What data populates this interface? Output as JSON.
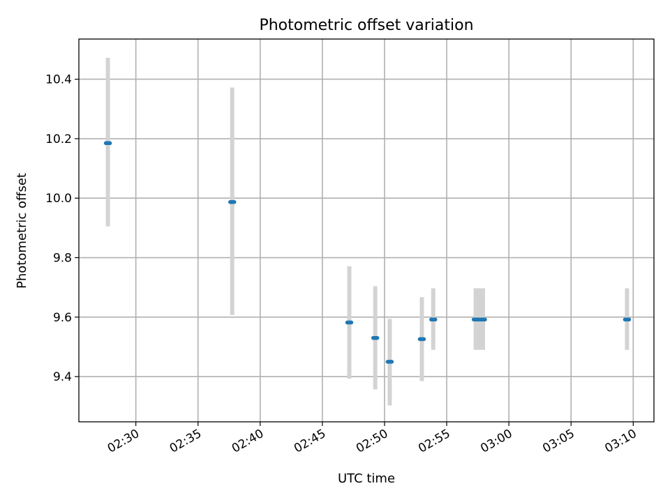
{
  "chart_data": {
    "type": "scatter",
    "title": "Photometric offset variation",
    "xlabel": "UTC time",
    "ylabel": "Photometric offset",
    "xlim": [
      "02:25:25",
      "03:11:40"
    ],
    "ylim": [
      9.248,
      10.535
    ],
    "x_ticks": [
      "02:30",
      "02:35",
      "02:40",
      "02:45",
      "02:50",
      "02:55",
      "03:00",
      "03:05",
      "03:10"
    ],
    "y_ticks": [
      "9.4",
      "9.6",
      "9.8",
      "10.0",
      "10.2",
      "10.4"
    ],
    "grid": true,
    "series": [
      {
        "marker_color": "#1f77b4",
        "band_color": "#d3d3d3",
        "points": [
          {
            "t_start": "02:27:35",
            "t_end": "02:27:55",
            "value": 10.185,
            "lower": 9.905,
            "upper": 10.472
          },
          {
            "t_start": "02:37:35",
            "t_end": "02:37:55",
            "value": 9.987,
            "lower": 9.607,
            "upper": 10.372
          },
          {
            "t_start": "02:47:00",
            "t_end": "02:47:20",
            "value": 9.582,
            "lower": 9.393,
            "upper": 9.771
          },
          {
            "t_start": "02:49:05",
            "t_end": "02:49:25",
            "value": 9.53,
            "lower": 9.357,
            "upper": 9.704
          },
          {
            "t_start": "02:50:15",
            "t_end": "02:50:35",
            "value": 9.45,
            "lower": 9.303,
            "upper": 9.594
          },
          {
            "t_start": "02:52:50",
            "t_end": "02:53:10",
            "value": 9.526,
            "lower": 9.385,
            "upper": 9.667
          },
          {
            "t_start": "02:53:45",
            "t_end": "02:54:05",
            "value": 9.592,
            "lower": 9.49,
            "upper": 9.697
          },
          {
            "t_start": "02:57:10",
            "t_end": "02:58:05",
            "value": 9.592,
            "lower": 9.49,
            "upper": 9.697
          },
          {
            "t_start": "03:09:20",
            "t_end": "03:09:40",
            "value": 9.592,
            "lower": 9.49,
            "upper": 9.697
          }
        ]
      }
    ]
  }
}
